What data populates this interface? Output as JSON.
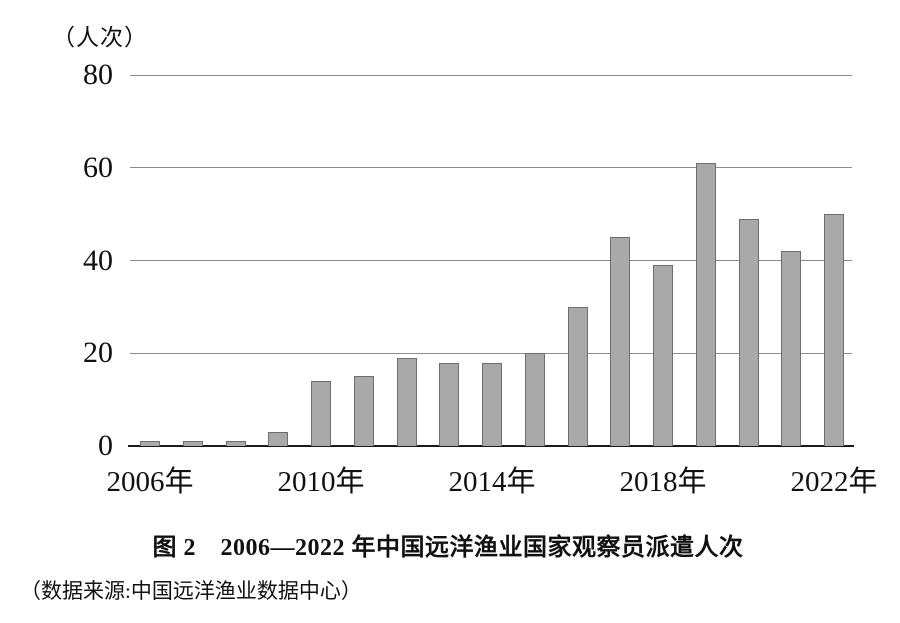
{
  "chart_data": {
    "type": "bar",
    "title": "图 2　2006—2022 年中国远洋渔业国家观察员派遣人次",
    "source_note": "（数据来源:中国远洋渔业数据中心）",
    "unit_label": "（人次）",
    "categories": [
      "2006",
      "2007",
      "2008",
      "2009",
      "2010",
      "2011",
      "2012",
      "2013",
      "2014",
      "2015",
      "2016",
      "2017",
      "2018",
      "2019",
      "2020",
      "2021",
      "2022"
    ],
    "values": [
      1,
      1,
      1,
      3,
      14,
      15,
      19,
      18,
      18,
      20,
      30,
      45,
      39,
      61,
      49,
      42,
      50
    ],
    "xlabel": "",
    "ylabel": "人次",
    "ylim": [
      0,
      80
    ],
    "y_ticks": [
      0,
      20,
      40,
      60,
      80
    ],
    "x_tick_labels": [
      "2006年",
      "2010年",
      "2014年",
      "2018年",
      "2022年"
    ],
    "x_tick_indices": [
      0,
      4,
      8,
      12,
      16
    ],
    "grid": "horizontal-on",
    "legend_position": "none",
    "bar_fill_color": "#a9a9a9",
    "bar_border_color": "#6e6e6e",
    "gridline_color": "#8c8c8c",
    "axis_line_color": "#1a1a1a",
    "text_color": "#111111",
    "background_color": "#ffffff"
  }
}
